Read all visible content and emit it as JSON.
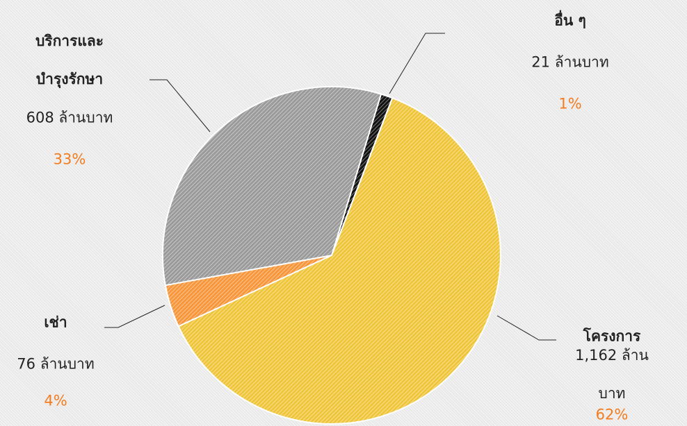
{
  "chart_data": {
    "type": "pie",
    "categories": [
      "อื่น ๆ",
      "โครงการ",
      "เช่า",
      "บริการและ\nบำรุงรักษา"
    ],
    "values": [
      21,
      1162,
      76,
      608
    ],
    "value_labels": [
      "21 ล้านบาท",
      "1,162 ล้านบาท",
      "76 ล้านบาท",
      "608 ล้านบาท"
    ],
    "percents": [
      1,
      62,
      4,
      33
    ],
    "percent_labels": [
      "1%",
      "62%",
      "4%",
      "33%"
    ],
    "colors": [
      "#111111",
      "#efc53a",
      "#f7963a",
      "#9a9a9a"
    ]
  }
}
